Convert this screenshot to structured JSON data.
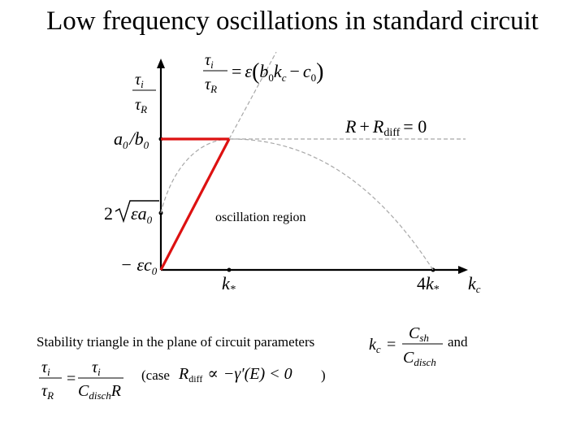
{
  "title": "Low frequency oscillations in standard circuit",
  "diagram": {
    "axis": {
      "y_label": {
        "num": "τ",
        "num_sub": "i",
        "den": "τ",
        "den_sub": "R"
      },
      "x_label": {
        "main": "k",
        "sub": "c"
      },
      "ticks_y": {
        "a0_over_b0": {
          "a": "a",
          "a_sub": "0",
          "slash": "/",
          "b": "b",
          "b_sub": "0"
        },
        "two_sqrt": {
          "two": "2",
          "inner": "εa",
          "inner_sub": "0"
        },
        "minus_eps_c0": {
          "text": "− εc",
          "sub": "0"
        }
      },
      "ticks_x": {
        "k_star": {
          "main": "k",
          "sub": "*"
        },
        "four_k_star": {
          "coef": "4",
          "main": "k",
          "sub": "*"
        }
      }
    },
    "line_equation": {
      "lhs_num": "τ",
      "lhs_num_sub": "i",
      "lhs_den": "τ",
      "lhs_den_sub": "R",
      "eq": "=",
      "eps": "ε",
      "lp": "(",
      "b": "b",
      "b_sub": "0",
      "k": "k",
      "k_sub": "c",
      "minus": "−",
      "c": "c",
      "c_sub": "0",
      "rp": ")"
    },
    "rdiff_equation": {
      "r1": "R",
      "plus": "+",
      "r2": "R",
      "r2_sub": "diff",
      "eq": "= 0"
    },
    "oscillation_label": "oscillation region",
    "colors": {
      "triangle": "#dd1111",
      "curve": "#a8a8a8",
      "axis": "#000000"
    }
  },
  "caption": {
    "line1": "Stability triangle in the plane of circuit parameters",
    "and": "and",
    "case_open": "(case",
    "case_close": ")",
    "kc_def": {
      "lhs": "k",
      "lhs_sub": "c",
      "eq": "=",
      "num": "C",
      "num_sub": "sh",
      "den": "C",
      "den_sub": "disch"
    },
    "tau_def": {
      "num": "τ",
      "num_sub": "i",
      "den": "τ",
      "den_sub": "R",
      "eq": "=",
      "rnum": "τ",
      "rnum_sub": "i",
      "rden": "C",
      "rden_sub": "disch",
      "rden_r": "R"
    },
    "case_expr": {
      "r": "R",
      "r_sub": "diff",
      "prop": "∝",
      "rest": "−γ′(E) < 0"
    }
  }
}
